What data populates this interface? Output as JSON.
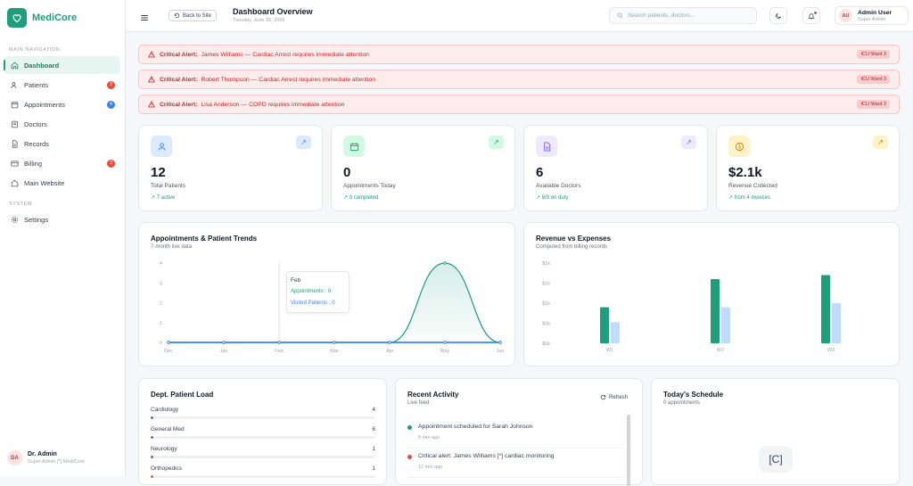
{
  "brand": {
    "name": "MediCore"
  },
  "sidebar": {
    "main_section": "MAIN NAVIGATION",
    "system_section": "SYSTEM",
    "items": [
      {
        "label": "Dashboard"
      },
      {
        "label": "Patients",
        "badge": "3"
      },
      {
        "label": "Appointments",
        "badge": "4"
      },
      {
        "label": "Doctors"
      },
      {
        "label": "Records"
      },
      {
        "label": "Billing",
        "badge": "3"
      },
      {
        "label": "Main Website"
      }
    ],
    "settings_label": "Settings",
    "user": {
      "initials": "DA",
      "name": "Dr. Admin",
      "role": "Super Admin [*] MediCore"
    }
  },
  "header": {
    "back_label": "Back to Site",
    "title": "Dashboard Overview",
    "date": "Tuesday, June 30, 2026",
    "search_placeholder": "Search patients, doctors...",
    "user": {
      "initials": "AU",
      "name": "Admin User",
      "role": "Super Admin"
    }
  },
  "alerts": [
    {
      "prefix": "Critical Alert:",
      "text": "James Williams — Cardiac Arrest requires immediate attention",
      "tag": "ICU Ward 3"
    },
    {
      "prefix": "Critical Alert:",
      "text": "Robert Thompson — Cardiac Arrest requires immediate attention",
      "tag": "ICU Ward 3"
    },
    {
      "prefix": "Critical Alert:",
      "text": "Lisa Anderson — COPD requires immediate attention",
      "tag": "ICU Ward 3"
    }
  ],
  "stats": [
    {
      "value": "12",
      "label": "Total Patients",
      "sub": "7 active",
      "color": "#3b82f6",
      "bg": "#dbeafe"
    },
    {
      "value": "0",
      "label": "Appointments Today",
      "sub": "0 completed",
      "color": "#1e9e7b",
      "bg": "#d1fae5"
    },
    {
      "value": "6",
      "label": "Available Doctors",
      "sub": "6/9 on duty",
      "color": "#7c5cd6",
      "bg": "#ede9fe"
    },
    {
      "value": "$2.1k",
      "label": "Revenue Collected",
      "sub": "from 4 invoices",
      "color": "#d97706",
      "bg": "#fef3c7"
    }
  ],
  "trends_chart": {
    "title": "Appointments & Patient Trends",
    "subtitle": "7-month live data",
    "tooltip": {
      "month": "Feb",
      "appointments": "Appointments : 0",
      "visited": "Visited Patients : 0"
    },
    "chart_data": {
      "type": "area",
      "categories": [
        "Dec",
        "Jan",
        "Feb",
        "Mar",
        "Apr",
        "May",
        "Jun"
      ],
      "y_ticks": [
        "0",
        "1",
        "2",
        "3",
        "4"
      ],
      "ylim": [
        0,
        4
      ],
      "series": [
        {
          "name": "Appointments",
          "values": [
            0,
            0,
            0,
            0,
            0,
            4,
            0
          ],
          "color": "#1e9e7b"
        },
        {
          "name": "Visited Patients",
          "values": [
            0,
            0,
            0,
            0,
            0,
            0,
            0
          ],
          "color": "#3b82f6"
        }
      ],
      "grid": false
    }
  },
  "revenue_chart": {
    "title": "Revenue vs Expenses",
    "subtitle": "Computed from billing records",
    "chart_data": {
      "type": "bar",
      "categories": [
        "W1",
        "W2",
        "W3"
      ],
      "y_ticks": [
        "$0k",
        "$0k",
        "$1k",
        "$1k",
        "$1k"
      ],
      "ylim": [
        0,
        4
      ],
      "series": [
        {
          "values": [
            1.8,
            3.2,
            3.4
          ],
          "color": "#1e9e7b"
        },
        {
          "values": [
            1.05,
            1.8,
            2.0
          ],
          "color": "#bfdbfe"
        }
      ],
      "grid": false
    }
  },
  "dept_load": {
    "title": "Dept. Patient Load",
    "rows": [
      {
        "name": "Cardiology",
        "count": "4",
        "pct": 0.01,
        "color": "#1e9e7b"
      },
      {
        "name": "General Med",
        "count": "6",
        "pct": 0.01,
        "color": "#3b82f6"
      },
      {
        "name": "Neurology",
        "count": "1",
        "pct": 0.005,
        "color": "#7c5cd6"
      },
      {
        "name": "Orthopedics",
        "count": "1",
        "pct": 0.005,
        "color": "#d97706"
      }
    ]
  },
  "activity": {
    "title": "Recent Activity",
    "subtitle": "Live feed",
    "refresh_label": "Refresh",
    "items": [
      {
        "text": "Appointment scheduled for Sarah Johnson",
        "time": "5 min ago",
        "color": "#1e9e7b"
      },
      {
        "text": "Critical alert: James Williams [*] cardiac monitoring",
        "time": "12 min ago",
        "color": "#e74c3c"
      }
    ]
  },
  "schedule": {
    "title": "Today's Schedule",
    "subtitle": "0 appointments",
    "placeholder": "[C]"
  }
}
